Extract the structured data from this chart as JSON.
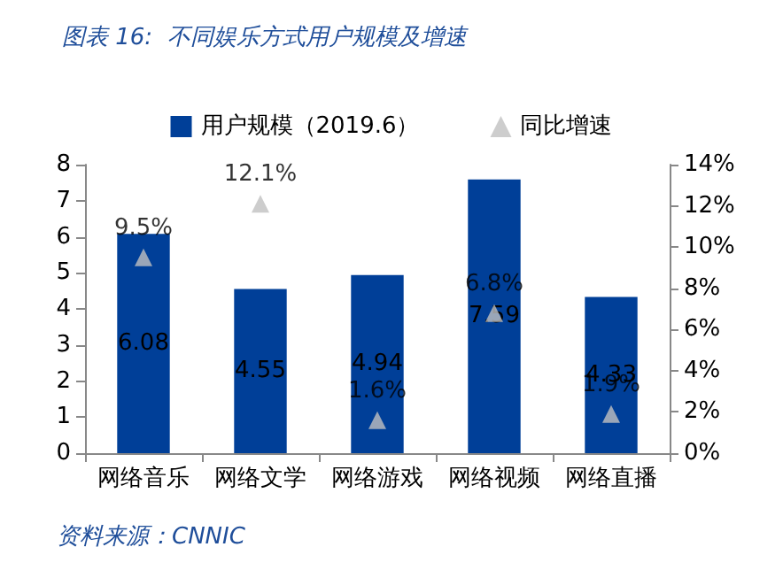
{
  "chart_data": {
    "type": "bar",
    "title": "图表 16:  不同娱乐方式用户规模及增速",
    "categories": [
      "网络音乐",
      "网络文学",
      "网络游戏",
      "网络视频",
      "网络直播"
    ],
    "series": [
      {
        "name": "用户规模（2019.6）",
        "color": "#003f98",
        "values": [
          6.08,
          4.55,
          4.94,
          7.59,
          4.33
        ]
      },
      {
        "name": "同比增速",
        "type": "scatter",
        "axis": "y2",
        "x": [
          "网络音乐",
          "网络文学",
          "网络游戏",
          "网络视频",
          "网络直播"
        ],
        "color": "#c0c0c0",
        "values": [
          9.5,
          12.1,
          1.6,
          6.8,
          1.9
        ],
        "value_labels": [
          "9.5%",
          "12.1%",
          "1.6%",
          "6.8%",
          "1.9%"
        ]
      }
    ],
    "ylim": [
      0,
      8
    ],
    "yticks": [
      0,
      1,
      2,
      3,
      4,
      5,
      6,
      7,
      8
    ],
    "y2lim": [
      0,
      14
    ],
    "y2ticks": [
      {
        "value": 0,
        "label": "0%"
      },
      {
        "value": 2,
        "label": "2%"
      },
      {
        "value": 4,
        "label": "4%"
      },
      {
        "value": 6,
        "label": "6%"
      },
      {
        "value": 8,
        "label": "8%"
      },
      {
        "value": 10,
        "label": "10%"
      },
      {
        "value": 12,
        "label": "12%"
      },
      {
        "value": 14,
        "label": "14%"
      }
    ],
    "data_labels": true,
    "marker": "triangle",
    "legend": "top",
    "grid": false,
    "annotations": [
      "资料来源：CNNIC"
    ]
  }
}
